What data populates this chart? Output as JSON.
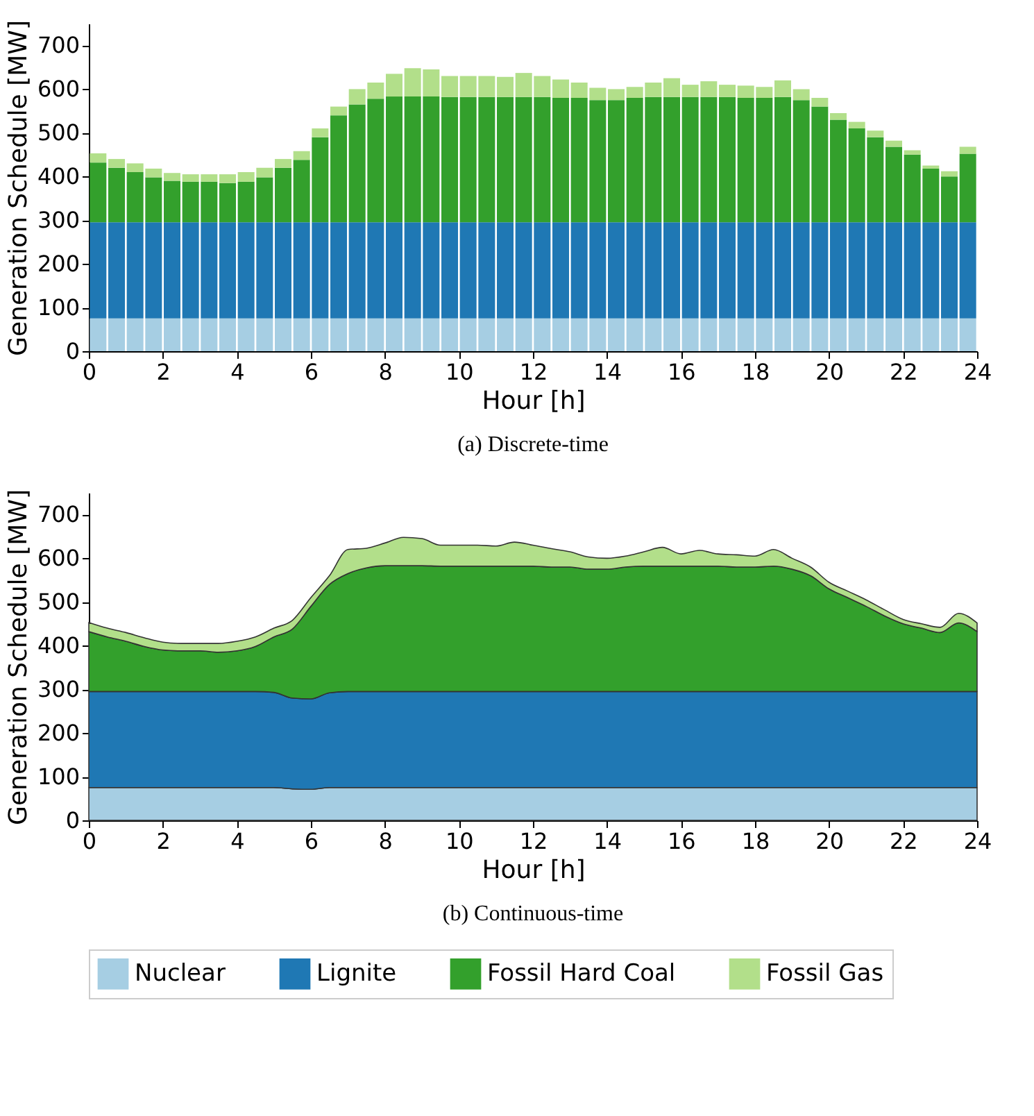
{
  "chart_data": [
    {
      "type": "bar",
      "title": "(a) Discrete-time",
      "xlabel": "Hour [h]",
      "ylabel": "Generation Schedule [MW]",
      "stacked": true,
      "xlim": [
        0,
        24
      ],
      "ylim": [
        0,
        750
      ],
      "xticks": [
        0,
        2,
        4,
        6,
        8,
        10,
        12,
        14,
        16,
        18,
        20,
        22,
        24
      ],
      "yticks": [
        0,
        100,
        200,
        300,
        400,
        500,
        600,
        700
      ],
      "grid": false,
      "legend": "bottom",
      "x": [
        0.25,
        0.75,
        1.25,
        1.75,
        2.25,
        2.75,
        3.25,
        3.75,
        4.25,
        4.75,
        5.25,
        5.75,
        6.25,
        6.75,
        7.25,
        7.75,
        8.25,
        8.75,
        9.25,
        9.75,
        10.25,
        10.75,
        11.25,
        11.75,
        12.25,
        12.75,
        13.25,
        13.75,
        14.25,
        14.75,
        15.25,
        15.75,
        16.25,
        16.75,
        17.25,
        17.75,
        18.25,
        18.75,
        19.25,
        19.75,
        20.25,
        20.75,
        21.25,
        21.75,
        22.25,
        22.75,
        23.25,
        23.75
      ],
      "series": [
        {
          "name": "Nuclear",
          "color": "#a6cee3",
          "values": [
            75,
            75,
            75,
            75,
            75,
            75,
            75,
            75,
            75,
            75,
            75,
            75,
            75,
            75,
            75,
            75,
            75,
            75,
            75,
            75,
            75,
            75,
            75,
            75,
            75,
            75,
            75,
            75,
            75,
            75,
            75,
            75,
            75,
            75,
            75,
            75,
            75,
            75,
            75,
            75,
            75,
            75,
            75,
            75,
            75,
            75,
            75,
            75
          ]
        },
        {
          "name": "Lignite",
          "color": "#1f78b4",
          "values": [
            220,
            220,
            220,
            220,
            220,
            220,
            220,
            220,
            220,
            220,
            220,
            220,
            220,
            220,
            220,
            220,
            220,
            220,
            220,
            220,
            220,
            220,
            220,
            220,
            220,
            220,
            220,
            220,
            220,
            220,
            220,
            220,
            220,
            220,
            220,
            220,
            220,
            220,
            220,
            220,
            220,
            220,
            220,
            220,
            220,
            220,
            220,
            220
          ]
        },
        {
          "name": "Fossil Hard Coal",
          "color": "#33a02c",
          "values": [
            137,
            125,
            115,
            103,
            95,
            93,
            93,
            90,
            93,
            103,
            125,
            143,
            195,
            245,
            270,
            283,
            288,
            288,
            288,
            287,
            287,
            287,
            287,
            287,
            287,
            285,
            285,
            280,
            280,
            285,
            287,
            287,
            287,
            287,
            287,
            285,
            285,
            287,
            280,
            265,
            235,
            215,
            195,
            173,
            155,
            123,
            105,
            157
          ]
        },
        {
          "name": "Fossil Gas",
          "color": "#b2df8a",
          "values": [
            21,
            20,
            20,
            20,
            18,
            17,
            17,
            20,
            22,
            22,
            20,
            20,
            20,
            20,
            35,
            37,
            52,
            65,
            62,
            48,
            48,
            48,
            46,
            55,
            48,
            42,
            35,
            28,
            25,
            25,
            33,
            43,
            28,
            36,
            28,
            28,
            25,
            38,
            25,
            20,
            15,
            15,
            15,
            14,
            10,
            7,
            12,
            16
          ]
        }
      ]
    },
    {
      "type": "area",
      "title": "(b) Continuous-time",
      "xlabel": "Hour [h]",
      "ylabel": "Generation Schedule [MW]",
      "stacked": true,
      "xlim": [
        0,
        24
      ],
      "ylim": [
        0,
        750
      ],
      "xticks": [
        0,
        2,
        4,
        6,
        8,
        10,
        12,
        14,
        16,
        18,
        20,
        22,
        24
      ],
      "yticks": [
        0,
        100,
        200,
        300,
        400,
        500,
        600,
        700
      ],
      "x": [
        0,
        0.5,
        1,
        1.5,
        2,
        2.5,
        3,
        3.5,
        4,
        4.5,
        5,
        5.5,
        6,
        6.5,
        7,
        7.5,
        8,
        8.5,
        9,
        9.5,
        10,
        10.5,
        11,
        11.5,
        12,
        12.5,
        13,
        13.5,
        14,
        14.5,
        15,
        15.5,
        16,
        16.5,
        17,
        17.5,
        18,
        18.5,
        19,
        19.5,
        20,
        20.5,
        21,
        21.5,
        22,
        22.5,
        23,
        23.5,
        24
      ],
      "series": [
        {
          "color": "#a6cee3",
          "values": [
            75,
            75,
            75,
            75,
            75,
            75,
            75,
            75,
            75,
            75,
            75,
            72,
            71,
            75,
            75,
            75,
            75,
            75,
            75,
            75,
            75,
            75,
            75,
            75,
            75,
            75,
            75,
            75,
            75,
            75,
            75,
            75,
            75,
            75,
            75,
            75,
            75,
            75,
            75,
            75,
            75,
            75,
            75,
            75,
            75,
            75,
            75,
            75,
            75
          ]
        },
        {
          "color": "#1f78b4",
          "values": [
            220,
            220,
            220,
            220,
            220,
            220,
            220,
            220,
            220,
            220,
            218,
            208,
            207,
            217,
            220,
            220,
            220,
            220,
            220,
            220,
            220,
            220,
            220,
            220,
            220,
            220,
            220,
            220,
            220,
            220,
            220,
            220,
            220,
            220,
            220,
            220,
            220,
            220,
            220,
            220,
            220,
            220,
            220,
            220,
            220,
            220,
            220,
            220,
            220
          ]
        },
        {
          "color": "#33a02c",
          "values": [
            137,
            125,
            115,
            103,
            95,
            93,
            93,
            90,
            93,
            103,
            127,
            158,
            212,
            248,
            270,
            283,
            288,
            288,
            288,
            287,
            287,
            287,
            287,
            287,
            287,
            285,
            285,
            280,
            280,
            285,
            287,
            287,
            287,
            287,
            287,
            285,
            285,
            287,
            280,
            265,
            235,
            215,
            195,
            173,
            155,
            145,
            135,
            157,
            137
          ]
        },
        {
          "color": "#b2df8a",
          "values": [
            21,
            20,
            20,
            20,
            18,
            17,
            17,
            20,
            22,
            22,
            20,
            20,
            20,
            20,
            55,
            45,
            52,
            65,
            62,
            48,
            48,
            48,
            46,
            55,
            48,
            42,
            35,
            28,
            25,
            25,
            33,
            43,
            28,
            36,
            28,
            28,
            25,
            38,
            25,
            20,
            15,
            15,
            15,
            14,
            10,
            10,
            12,
            22,
            20
          ]
        }
      ]
    }
  ]
}
